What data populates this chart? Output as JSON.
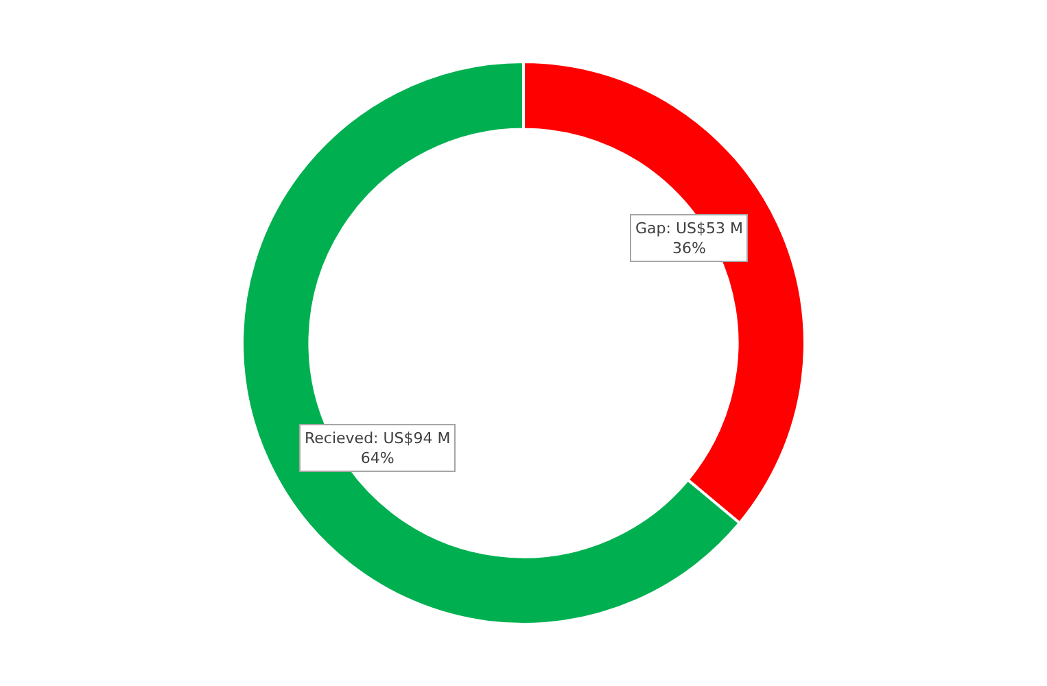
{
  "chart_data": {
    "type": "donut",
    "categories": [
      "Gap",
      "Recieved"
    ],
    "values": [
      53,
      94
    ],
    "colors": [
      "#ff0000",
      "#00b050"
    ],
    "value_labels": [
      "US$53 M\n36%",
      "US$94 M\n64%"
    ],
    "legend": false
  }
}
